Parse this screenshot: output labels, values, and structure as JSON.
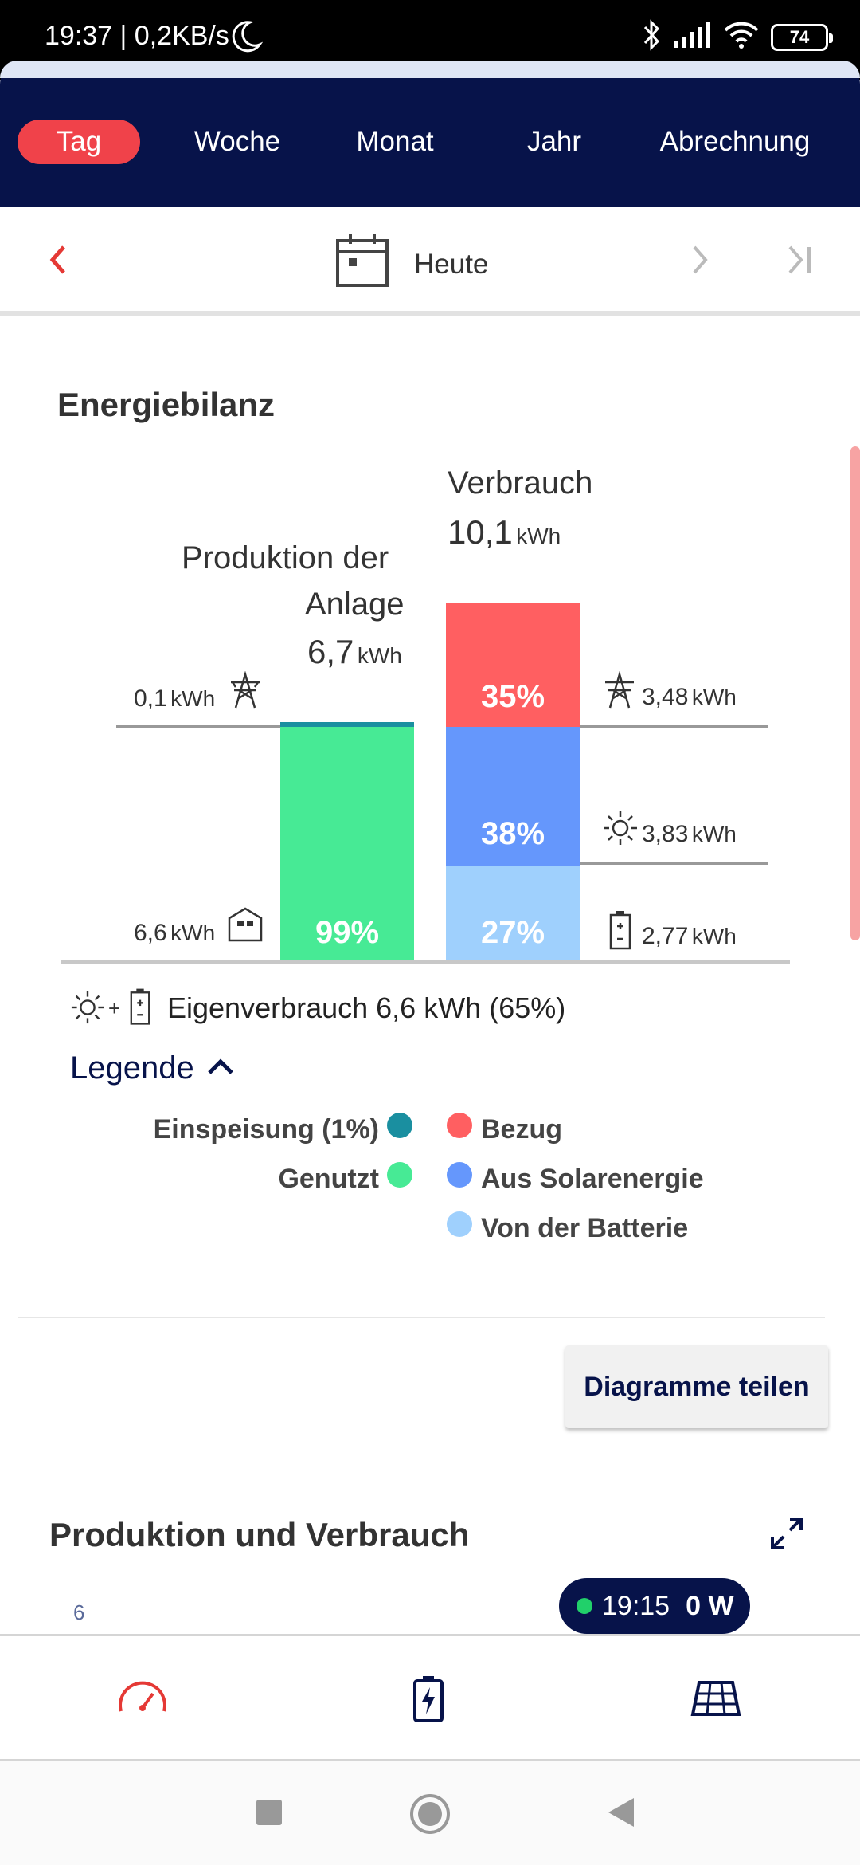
{
  "status_bar": {
    "time": "19:37 | 0,2KB/s",
    "battery": "74"
  },
  "tabs": [
    {
      "label": "Tag",
      "active": true
    },
    {
      "label": "Woche",
      "active": false
    },
    {
      "label": "Monat",
      "active": false
    },
    {
      "label": "Jahr",
      "active": false
    },
    {
      "label": "Abrechnung",
      "active": false
    }
  ],
  "date_nav": {
    "label": "Heute"
  },
  "energy_balance": {
    "title": "Energiebilanz",
    "production": {
      "label_line1": "Produktion der",
      "label_line2": "Anlage",
      "value": "6,7",
      "unit": "kWh"
    },
    "consumption": {
      "label": "Verbrauch",
      "value": "10,1",
      "unit": "kWh"
    },
    "left_labels": {
      "grid_value": "0,1",
      "house_value": "6,6",
      "unit": "kWh"
    },
    "right_labels": {
      "grid_value": "3,48",
      "solar_value": "3,83",
      "battery_value": "2,77",
      "unit": "kWh"
    },
    "production_bar": {
      "used_pct": "99%",
      "fed_in_pct": 1
    },
    "consumption_bar": {
      "grid_pct": "35%",
      "solar_pct": "38%",
      "battery_pct": "27%"
    },
    "self_consumption": "Eigenverbrauch 6,6 kWh (65%)",
    "colors": {
      "fed_in": "#1a8fa0",
      "used": "#47ea95",
      "grid": "#ff5f61",
      "solar": "#6597fc",
      "battery": "#9fd0fd"
    }
  },
  "legend": {
    "title": "Legende",
    "fed_in": "Einspeisung (1%)",
    "used": "Genutzt",
    "grid": "Bezug",
    "solar": "Aus Solarenergie",
    "battery": "Von der Batterie"
  },
  "share_button": "Diagramme teilen",
  "production_consumption": {
    "title": "Produktion und Verbrauch",
    "axis_tick": "6",
    "tooltip_time": "19:15",
    "tooltip_value": "0 W"
  },
  "icons": [
    "moon-icon",
    "bluetooth-icon",
    "signal-icon",
    "wifi-icon",
    "calendar-icon",
    "chevron-left-icon",
    "chevron-right-icon",
    "skip-to-end-icon",
    "pylon-icon",
    "house-icon",
    "sun-icon",
    "battery-icon",
    "chevron-up-icon",
    "expand-icon",
    "gauge-icon",
    "battery-charging-icon",
    "solar-panel-icon",
    "stop-icon",
    "home-circle-icon",
    "back-icon"
  ]
}
